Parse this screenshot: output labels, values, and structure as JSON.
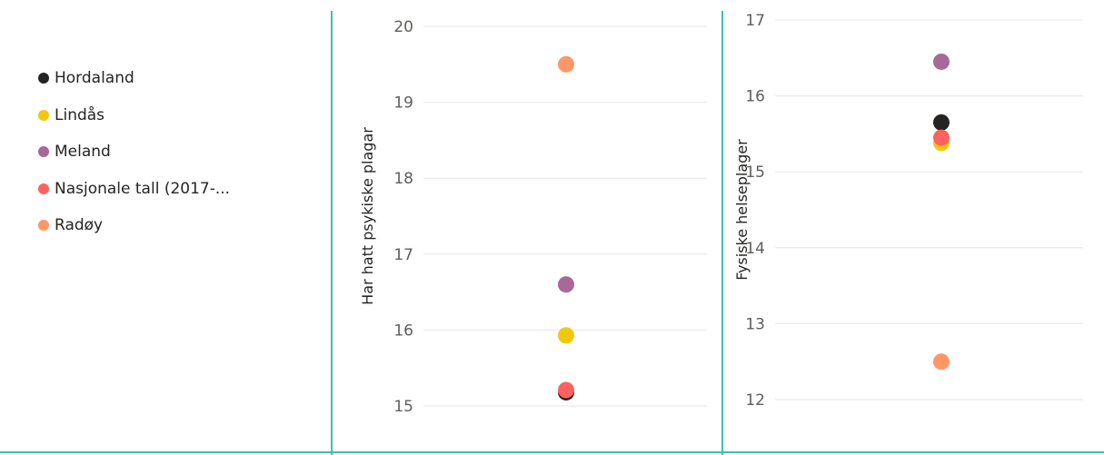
{
  "legend": {
    "items": [
      {
        "label": "Hordaland",
        "color": "#252423"
      },
      {
        "label": "Lindås",
        "color": "#f2c80f"
      },
      {
        "label": "Meland",
        "color": "#a66999"
      },
      {
        "label": "Nasjonale tall (2017-...",
        "color": "#fd625e"
      },
      {
        "label": "Radøy",
        "color": "#fe9666"
      }
    ]
  },
  "chart_data": [
    {
      "type": "scatter",
      "ylabel": "Har hatt psykiske plagar",
      "ylim": [
        15,
        20
      ],
      "yticks": [
        15,
        16,
        17,
        18,
        19,
        20
      ],
      "grid": true,
      "series": [
        {
          "name": "Radøy",
          "y": 19.5
        },
        {
          "name": "Meland",
          "y": 16.6
        },
        {
          "name": "Lindås",
          "y": 15.93
        },
        {
          "name": "Hordaland",
          "y": 15.18
        },
        {
          "name": "Nasjonale tall (2017-...",
          "y": 15.21
        }
      ]
    },
    {
      "type": "scatter",
      "ylabel": "Fysiske helseplager",
      "ylim": [
        12,
        17
      ],
      "yticks": [
        12,
        13,
        14,
        15,
        16,
        17
      ],
      "grid": true,
      "series": [
        {
          "name": "Meland",
          "y": 16.45
        },
        {
          "name": "Hordaland",
          "y": 15.65
        },
        {
          "name": "Lindås",
          "y": 15.38
        },
        {
          "name": "Nasjonale tall (2017-...",
          "y": 15.45
        },
        {
          "name": "Radøy",
          "y": 12.5
        }
      ]
    }
  ]
}
